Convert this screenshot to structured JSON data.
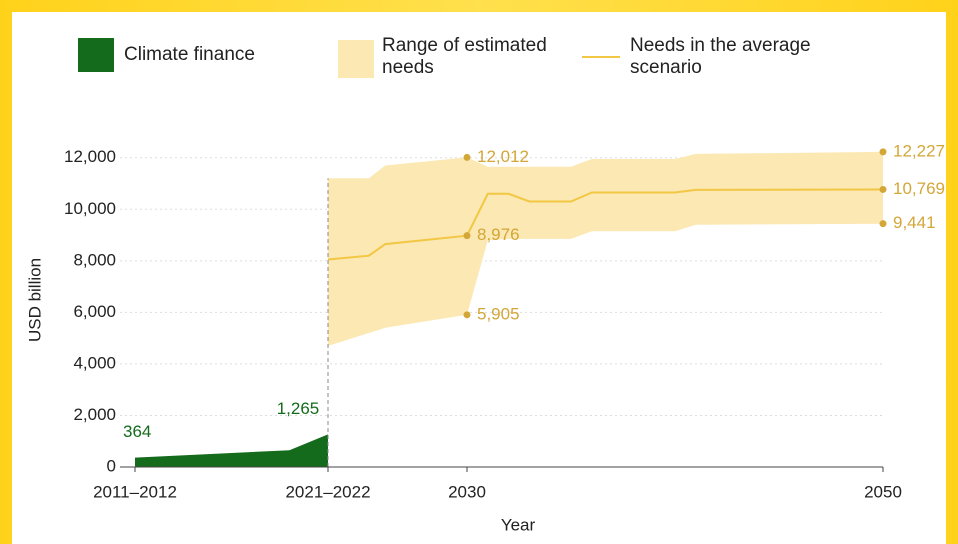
{
  "chart_data": {
    "type": "area",
    "xlabel": "Year",
    "ylabel": "USD billion",
    "xlim": [
      2011.5,
      2050
    ],
    "xticks": [
      {
        "value": 2011.5,
        "label": "2011–2012"
      },
      {
        "value": 2021.5,
        "label": "2021–2022"
      },
      2030,
      2050
    ],
    "ylim": [
      0,
      12300
    ],
    "yticks": [
      0,
      {
        "value": 2000,
        "label": "2,000"
      },
      {
        "value": 4000,
        "label": "4,000"
      },
      {
        "value": 6000,
        "label": "6,000"
      },
      {
        "value": 8000,
        "label": "8,000"
      },
      {
        "value": 10000,
        "label": "10,000"
      },
      {
        "value": 12000,
        "label": "12,000"
      }
    ],
    "grid": true,
    "series": [
      {
        "name": "Climate finance",
        "kind": "area",
        "color": "#146b1c",
        "x": [
          2011.5,
          2019.5,
          2021.5
        ],
        "values": [
          364,
          650,
          1265
        ],
        "value_labels": [
          "364",
          null,
          "1,265"
        ]
      },
      {
        "name": "Range of estimated needs",
        "kind": "band",
        "color": "#fbe8b2",
        "x": [
          2021.5,
          2024,
          2025,
          2030,
          2031,
          2032,
          2033,
          2035,
          2036,
          2040,
          2041,
          2050
        ],
        "upper": [
          11200,
          11200,
          11700,
          12012,
          11650,
          11650,
          11650,
          11650,
          11950,
          11950,
          12150,
          12227
        ],
        "upper_labels": [
          null,
          null,
          null,
          "12,012",
          null,
          null,
          null,
          null,
          null,
          null,
          null,
          "12,227"
        ],
        "lower": [
          4700,
          5200,
          5400,
          5905,
          8800,
          8850,
          8850,
          8850,
          9150,
          9150,
          9400,
          9441
        ],
        "lower_labels": [
          null,
          null,
          null,
          "5,905",
          null,
          null,
          null,
          null,
          null,
          null,
          null,
          "9,441"
        ]
      },
      {
        "name": "Needs in the average scenario",
        "kind": "line",
        "color": "#f2c744",
        "x": [
          2021.5,
          2024,
          2025,
          2030,
          2031,
          2032,
          2033,
          2035,
          2036,
          2040,
          2041,
          2050
        ],
        "values": [
          8050,
          8200,
          8650,
          8976,
          10600,
          10600,
          10300,
          10300,
          10650,
          10650,
          10750,
          10769
        ],
        "value_labels": [
          null,
          null,
          null,
          "8,976",
          null,
          null,
          null,
          null,
          null,
          null,
          null,
          "10,769"
        ]
      }
    ]
  }
}
